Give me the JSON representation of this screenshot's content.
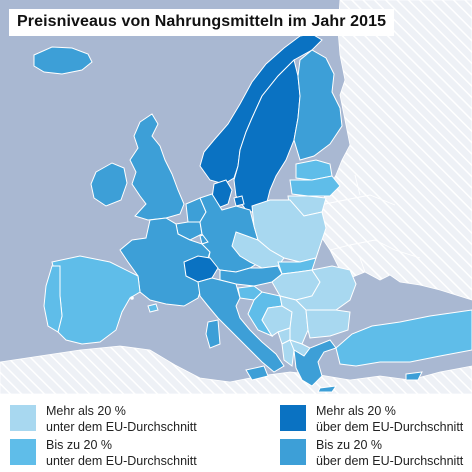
{
  "title": "Preisniveaus von Nahrungsmitteln im Jahr 2015",
  "colors": {
    "sea": "#a9b8d2",
    "non_eu_land": "#c7cfde",
    "hatch_land": "#eef1f6",
    "border": "#ffffff",
    "much_below": "#a8d8f0",
    "below": "#5fbde9",
    "above": "#3d9fd7",
    "much_above": "#0a72c2"
  },
  "legend": {
    "much_below": {
      "line1": "Mehr als 20 %",
      "line2": "unter dem EU-Durchschnitt"
    },
    "below": {
      "line1": "Bis zu 20 %",
      "line2": "unter dem EU-Durchschnitt"
    },
    "much_above": {
      "line1": "Mehr als 20 %",
      "line2": "über dem EU-Durchschnitt"
    },
    "above": {
      "line1": "Bis zu 20 %",
      "line2": "über dem EU-Durchschnitt"
    }
  },
  "categories": {
    "much_above": [
      "Norwegen",
      "Schweden",
      "Dänemark",
      "Schweiz"
    ],
    "above": [
      "Finnland",
      "Frankreich",
      "Deutschland",
      "Belgien",
      "Luxemburg",
      "Niederlande",
      "Österreich",
      "Italien",
      "Irland",
      "Vereinigtes Königreich",
      "Griechenland",
      "Zypern",
      "Malta",
      "Island"
    ],
    "below": [
      "Spanien",
      "Portugal",
      "Estland",
      "Slowenien",
      "Kroatien",
      "Lettland",
      "Türkei",
      "Slowakei"
    ],
    "much_below": [
      "Polen",
      "Tschechien",
      "Ungarn",
      "Rumänien",
      "Bulgarien",
      "Litauen",
      "Serbien",
      "Bosnien und Herzegowina",
      "Nordmazedonien",
      "Montenegro",
      "Albanien"
    ]
  }
}
